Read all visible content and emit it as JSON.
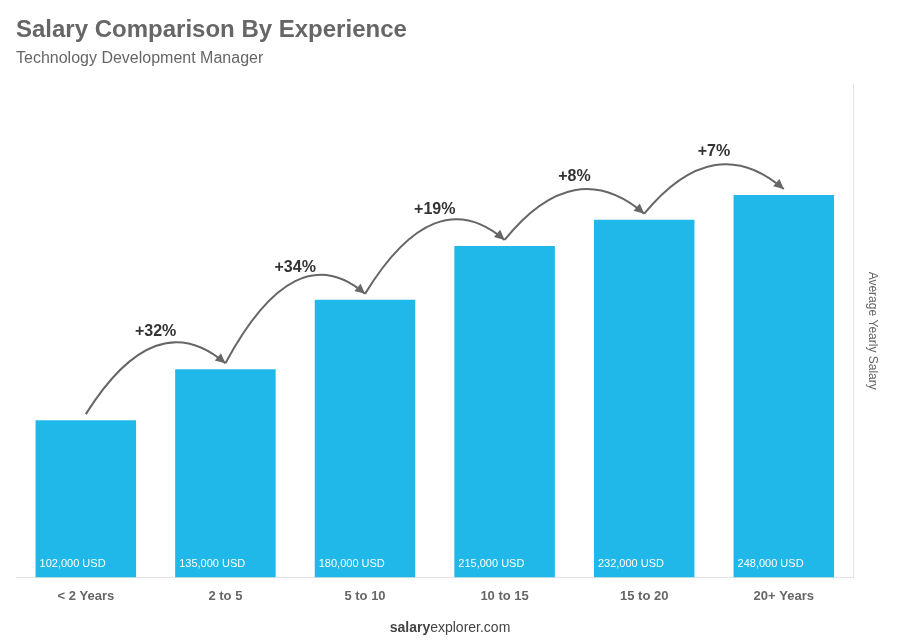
{
  "chart_data": {
    "type": "bar",
    "title": "Salary Comparison By Experience",
    "subtitle": "Technology Development Manager",
    "categories": [
      "< 2 Years",
      "2 to 5",
      "5 to 10",
      "10 to 15",
      "15 to 20",
      "20+ Years"
    ],
    "values": [
      102000,
      135000,
      180000,
      215000,
      232000,
      248000
    ],
    "value_labels": [
      "102,000 USD",
      "135,000 USD",
      "180,000 USD",
      "215,000 USD",
      "232,000 USD",
      "248,000 USD"
    ],
    "data_labels": true,
    "color": "#20b8e8",
    "annotations": [
      "+32%",
      "+34%",
      "+19%",
      "+8%",
      "+7%"
    ],
    "footer": [
      "salary",
      "explorer.com"
    ],
    "ylabel": "Average Yearly Salary",
    "ylim": [
      0,
      320000
    ],
    "tick_labels": "x",
    "grid": false
  }
}
